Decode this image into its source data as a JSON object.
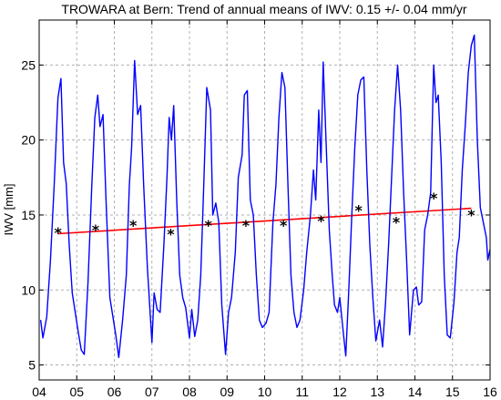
{
  "chart_data": {
    "type": "line",
    "title": "TROWARA at Bern: Trend of annual means of IWV: 0.15 +/- 0.04 mm/yr",
    "xlabel": "",
    "ylabel": "IWV [mm]",
    "xlim": [
      2004,
      2016
    ],
    "ylim": [
      4,
      28
    ],
    "x_ticks": [
      2004,
      2005,
      2006,
      2007,
      2008,
      2009,
      2010,
      2011,
      2012,
      2013,
      2014,
      2015,
      2016
    ],
    "x_tick_labels": [
      "04",
      "05",
      "06",
      "07",
      "08",
      "09",
      "10",
      "11",
      "12",
      "13",
      "14",
      "15",
      "16"
    ],
    "y_ticks": [
      5,
      10,
      15,
      20,
      25
    ],
    "y_tick_labels": [
      "5",
      "10",
      "15",
      "20",
      "25"
    ],
    "grid": true,
    "series": [
      {
        "role": "monthly IWV",
        "color": "#0000ff",
        "style": "line",
        "points": [
          [
            2004.04,
            8.0
          ],
          [
            2004.1,
            6.8
          ],
          [
            2004.2,
            8.2
          ],
          [
            2004.3,
            12.0
          ],
          [
            2004.4,
            17.0
          ],
          [
            2004.5,
            22.8
          ],
          [
            2004.58,
            24.1
          ],
          [
            2004.65,
            18.5
          ],
          [
            2004.72,
            17.1
          ],
          [
            2004.8,
            13.0
          ],
          [
            2004.88,
            9.8
          ],
          [
            2005.04,
            7.2
          ],
          [
            2005.12,
            6.0
          ],
          [
            2005.2,
            5.7
          ],
          [
            2005.3,
            10.5
          ],
          [
            2005.4,
            17.0
          ],
          [
            2005.48,
            21.5
          ],
          [
            2005.56,
            23.0
          ],
          [
            2005.62,
            20.9
          ],
          [
            2005.7,
            21.7
          ],
          [
            2005.78,
            16.0
          ],
          [
            2005.88,
            9.5
          ],
          [
            2006.04,
            7.0
          ],
          [
            2006.12,
            5.5
          ],
          [
            2006.22,
            8.0
          ],
          [
            2006.32,
            11.0
          ],
          [
            2006.4,
            17.0
          ],
          [
            2006.46,
            19.5
          ],
          [
            2006.54,
            25.3
          ],
          [
            2006.62,
            21.7
          ],
          [
            2006.7,
            22.3
          ],
          [
            2006.78,
            17.0
          ],
          [
            2006.88,
            11.5
          ],
          [
            2007.0,
            6.5
          ],
          [
            2007.06,
            9.8
          ],
          [
            2007.14,
            8.7
          ],
          [
            2007.22,
            8.5
          ],
          [
            2007.32,
            13.0
          ],
          [
            2007.4,
            17.5
          ],
          [
            2007.46,
            21.5
          ],
          [
            2007.52,
            20.0
          ],
          [
            2007.58,
            22.3
          ],
          [
            2007.66,
            16.0
          ],
          [
            2007.74,
            11.0
          ],
          [
            2007.82,
            9.5
          ],
          [
            2007.9,
            8.8
          ],
          [
            2008.0,
            6.8
          ],
          [
            2008.06,
            8.7
          ],
          [
            2008.14,
            6.9
          ],
          [
            2008.22,
            8.0
          ],
          [
            2008.3,
            11.0
          ],
          [
            2008.38,
            17.0
          ],
          [
            2008.46,
            23.5
          ],
          [
            2008.56,
            22.0
          ],
          [
            2008.62,
            15.0
          ],
          [
            2008.7,
            15.8
          ],
          [
            2008.78,
            14.5
          ],
          [
            2008.86,
            9.0
          ],
          [
            2008.96,
            5.7
          ],
          [
            2009.04,
            8.5
          ],
          [
            2009.12,
            9.5
          ],
          [
            2009.22,
            12.5
          ],
          [
            2009.3,
            17.5
          ],
          [
            2009.4,
            19.0
          ],
          [
            2009.46,
            23.0
          ],
          [
            2009.54,
            23.3
          ],
          [
            2009.62,
            16.0
          ],
          [
            2009.7,
            15.0
          ],
          [
            2009.78,
            11.0
          ],
          [
            2009.86,
            8.0
          ],
          [
            2009.94,
            7.5
          ],
          [
            2010.04,
            7.8
          ],
          [
            2010.12,
            8.5
          ],
          [
            2010.22,
            14.5
          ],
          [
            2010.3,
            17.0
          ],
          [
            2010.38,
            21.5
          ],
          [
            2010.46,
            24.5
          ],
          [
            2010.54,
            23.5
          ],
          [
            2010.62,
            17.0
          ],
          [
            2010.7,
            11.0
          ],
          [
            2010.78,
            8.5
          ],
          [
            2010.86,
            7.5
          ],
          [
            2010.94,
            8.0
          ],
          [
            2011.04,
            10.0
          ],
          [
            2011.12,
            12.5
          ],
          [
            2011.22,
            15.0
          ],
          [
            2011.3,
            18.0
          ],
          [
            2011.36,
            16.0
          ],
          [
            2011.44,
            22.0
          ],
          [
            2011.5,
            18.5
          ],
          [
            2011.56,
            25.2
          ],
          [
            2011.64,
            19.5
          ],
          [
            2011.72,
            14.0
          ],
          [
            2011.8,
            11.0
          ],
          [
            2011.86,
            9.0
          ],
          [
            2011.94,
            8.5
          ],
          [
            2012.0,
            9.5
          ],
          [
            2012.08,
            7.5
          ],
          [
            2012.16,
            5.6
          ],
          [
            2012.24,
            10.0
          ],
          [
            2012.32,
            15.0
          ],
          [
            2012.4,
            19.5
          ],
          [
            2012.48,
            23.0
          ],
          [
            2012.56,
            24.0
          ],
          [
            2012.64,
            24.2
          ],
          [
            2012.72,
            18.0
          ],
          [
            2012.8,
            13.0
          ],
          [
            2012.88,
            9.5
          ],
          [
            2012.96,
            6.6
          ],
          [
            2013.06,
            8.0
          ],
          [
            2013.14,
            6.2
          ],
          [
            2013.22,
            9.2
          ],
          [
            2013.3,
            13.0
          ],
          [
            2013.38,
            17.5
          ],
          [
            2013.46,
            22.0
          ],
          [
            2013.54,
            25.0
          ],
          [
            2013.62,
            22.0
          ],
          [
            2013.7,
            16.5
          ],
          [
            2013.78,
            12.0
          ],
          [
            2013.86,
            7.0
          ],
          [
            2013.96,
            10.0
          ],
          [
            2014.04,
            10.2
          ],
          [
            2014.1,
            9.0
          ],
          [
            2014.18,
            9.2
          ],
          [
            2014.26,
            14.0
          ],
          [
            2014.34,
            15.0
          ],
          [
            2014.42,
            16.5
          ],
          [
            2014.5,
            25.0
          ],
          [
            2014.56,
            22.5
          ],
          [
            2014.62,
            23.0
          ],
          [
            2014.7,
            18.5
          ],
          [
            2014.78,
            11.0
          ],
          [
            2014.86,
            7.0
          ],
          [
            2014.94,
            6.8
          ],
          [
            2015.04,
            9.2
          ],
          [
            2015.12,
            12.5
          ],
          [
            2015.18,
            13.5
          ],
          [
            2015.26,
            18.0
          ],
          [
            2015.34,
            21.0
          ],
          [
            2015.42,
            24.5
          ],
          [
            2015.5,
            26.3
          ],
          [
            2015.58,
            27.0
          ],
          [
            2015.66,
            20.0
          ],
          [
            2015.74,
            15.5
          ],
          [
            2015.82,
            14.5
          ],
          [
            2015.9,
            13.5
          ],
          [
            2015.94,
            12.0
          ],
          [
            2016.0,
            12.7
          ]
        ]
      },
      {
        "role": "annual means",
        "color": "#000000",
        "style": "markers",
        "marker": "*",
        "points": [
          [
            2004.5,
            13.9
          ],
          [
            2005.5,
            14.1
          ],
          [
            2006.5,
            14.4
          ],
          [
            2007.5,
            13.8
          ],
          [
            2008.5,
            14.4
          ],
          [
            2009.5,
            14.4
          ],
          [
            2010.5,
            14.4
          ],
          [
            2011.5,
            14.7
          ],
          [
            2012.5,
            15.4
          ],
          [
            2013.5,
            14.6
          ],
          [
            2014.5,
            16.2
          ],
          [
            2015.5,
            15.1
          ]
        ]
      },
      {
        "role": "linear trend",
        "color": "#ff0000",
        "style": "line",
        "points": [
          [
            2004.5,
            13.75
          ],
          [
            2015.5,
            15.45
          ]
        ]
      }
    ]
  }
}
